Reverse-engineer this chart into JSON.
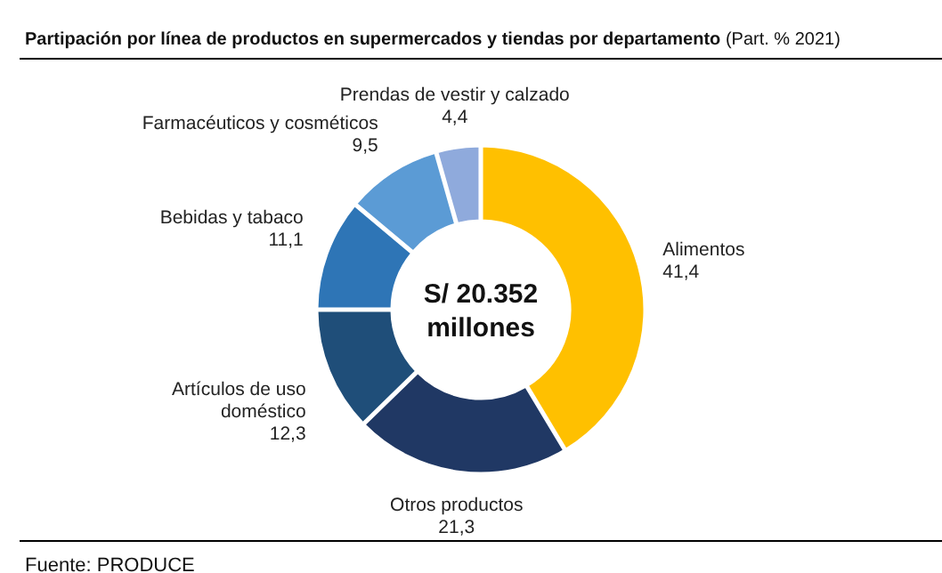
{
  "chart_data": {
    "type": "donut",
    "title": "Partipación por línea de productos en supermercados y tiendas por departamento",
    "subtitle": "(Part. % 2021)",
    "categories": [
      "Alimentos",
      "Otros productos",
      "Artículos de uso doméstico",
      "Bebidas y tabaco",
      "Farmacéuticos y cosméticos",
      "Prendas de vestir y calzado"
    ],
    "values": [
      41.4,
      21.3,
      12.3,
      11.1,
      9.5,
      4.4
    ],
    "value_labels": [
      "41,4",
      "21,3",
      "12,3",
      "11,1",
      "9,5",
      "4,4"
    ],
    "colors": [
      "#ffc000",
      "#203864",
      "#1f4e79",
      "#2e75b6",
      "#5b9bd5",
      "#8faadc"
    ],
    "annotations": [
      "S/ 20.352 millones",
      "Fuente: PRODUCE"
    ]
  }
}
